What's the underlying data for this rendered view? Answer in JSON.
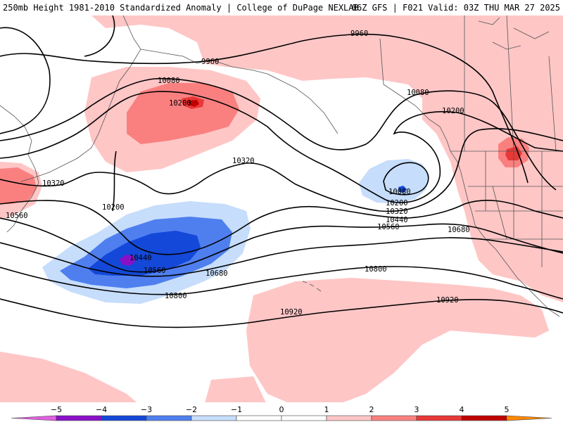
{
  "header": {
    "title_left": "250mb Height 1981-2010 Standardized Anomaly | College of DuPage NEXLAB",
    "title_right": "06Z GFS | F021 Valid: 03Z THU MAR 27 2025"
  },
  "map": {
    "contour_labels": {
      "c9960_a": "9960",
      "c9960_b": "9960",
      "c10080_a": "10080",
      "c10080_b": "10080",
      "c10080_c": "10080",
      "c10200_a": "10200",
      "c10200_b": "10200",
      "c10200_c": "10200",
      "c10200_d": "10200",
      "c10320_a": "10320",
      "c10320_b": "10320",
      "c10320_c": "10320",
      "c10440_a": "10440",
      "c10440_b": "10440",
      "c10560_a": "10560",
      "c10560_b": "10560",
      "c10560_c": "10560",
      "c10680_a": "10680",
      "c10680_b": "10680",
      "c10800_a": "10800",
      "c10800_b": "10800",
      "c10920_a": "10920",
      "c10920_b": "10920"
    },
    "colors": {
      "neg5": "#e060e0",
      "neg4": "#8a10c8",
      "neg3": "#1448d8",
      "neg2": "#4f7fef",
      "neg1": "#c6ddfb",
      "zero": "#ffffff",
      "pos1": "#ffc6c6",
      "pos2": "#fa8080",
      "pos3": "#e83838",
      "pos4": "#c00000",
      "pos5": "#ff8800"
    }
  },
  "colorbar": {
    "ticks": [
      "−5",
      "−4",
      "−3",
      "−2",
      "−1",
      "0",
      "1",
      "2",
      "3",
      "4",
      "5"
    ]
  }
}
